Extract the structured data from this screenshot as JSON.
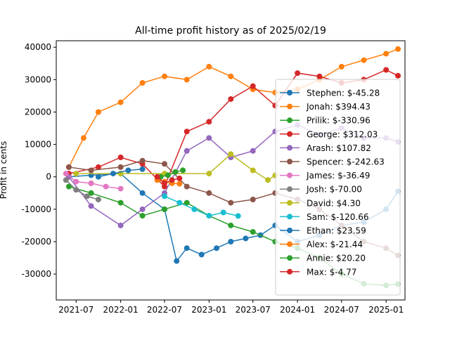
{
  "chart_data": {
    "type": "line",
    "title": "All-time profit history as of 2025/02/19",
    "xlabel": "",
    "ylabel": "Profit in cents",
    "xlim": [
      "2021-04-10",
      "2025-03-20"
    ],
    "ylim": [
      -38000,
      42000
    ],
    "x_ticks": [
      "2021-07",
      "2022-01",
      "2022-07",
      "2023-01",
      "2023-07",
      "2024-01",
      "2024-07",
      "2025-01"
    ],
    "y_ticks": [
      -30000,
      -20000,
      -10000,
      0,
      10000,
      20000,
      30000,
      40000
    ],
    "legend_position": "lower right",
    "series": [
      {
        "name": "Stephen: $-45.28",
        "color": "#1f77b4",
        "x": [
          "2021-06-01",
          "2021-09-01",
          "2022-01-01",
          "2022-04-01",
          "2022-07-01",
          "2022-08-20",
          "2022-10-01",
          "2022-12-01",
          "2023-02-01",
          "2023-04-01",
          "2023-06-01",
          "2023-08-01",
          "2023-10-01",
          "2024-01-01",
          "2024-04-01",
          "2024-07-01",
          "2024-10-01",
          "2025-01-01",
          "2025-02-19"
        ],
        "y": [
          0,
          500,
          1000,
          -5000,
          -10000,
          -26000,
          -22000,
          -24000,
          -22000,
          -20000,
          -19000,
          -18000,
          -15000,
          -20000,
          -18000,
          -15000,
          -14000,
          -10000,
          -4528
        ]
      },
      {
        "name": "Jonah: $394.43",
        "color": "#ff7f0e",
        "x": [
          "2021-06-01",
          "2021-08-01",
          "2021-10-01",
          "2022-01-01",
          "2022-04-01",
          "2022-07-01",
          "2022-10-01",
          "2023-01-01",
          "2023-04-01",
          "2023-07-01",
          "2023-10-01",
          "2024-01-01",
          "2024-04-01",
          "2024-07-01",
          "2024-10-01",
          "2025-01-01",
          "2025-02-19"
        ],
        "y": [
          3000,
          12000,
          20000,
          23000,
          29000,
          31000,
          30000,
          34000,
          31000,
          27000,
          26000,
          27000,
          30000,
          34000,
          36000,
          38000,
          39443
        ]
      },
      {
        "name": "Prilik: $-330.96",
        "color": "#2ca02c",
        "x": [
          "2021-06-01",
          "2021-09-01",
          "2022-01-01",
          "2022-04-01",
          "2022-07-01",
          "2022-10-01",
          "2023-01-01",
          "2023-04-01",
          "2023-07-01",
          "2023-10-01",
          "2024-01-01",
          "2024-04-01",
          "2024-07-01",
          "2024-10-01",
          "2025-01-01",
          "2025-02-19"
        ],
        "y": [
          -3000,
          -5000,
          -8000,
          -12000,
          -10000,
          -8000,
          -12000,
          -15000,
          -17000,
          -20000,
          -22000,
          -25000,
          -30000,
          -33000,
          -33500,
          -33096
        ]
      },
      {
        "name": "George: $312.03",
        "color": "#d62728",
        "x": [
          "2021-06-01",
          "2021-10-01",
          "2022-01-01",
          "2022-04-01",
          "2022-07-01",
          "2022-10-01",
          "2023-01-01",
          "2023-04-01",
          "2023-07-01",
          "2023-10-01",
          "2024-01-01",
          "2024-04-01",
          "2024-07-01",
          "2024-10-01",
          "2025-01-01",
          "2025-02-19"
        ],
        "y": [
          1000,
          3000,
          6000,
          4000,
          -3000,
          14000,
          17000,
          24000,
          28000,
          22000,
          32000,
          31000,
          29000,
          30000,
          33000,
          31203
        ]
      },
      {
        "name": "Arash: $107.82",
        "color": "#9467bd",
        "x": [
          "2021-06-01",
          "2021-09-01",
          "2022-01-01",
          "2022-04-01",
          "2022-07-01",
          "2022-10-01",
          "2023-01-01",
          "2023-04-01",
          "2023-07-01",
          "2023-10-01",
          "2024-01-01",
          "2024-04-01",
          "2024-07-01",
          "2024-10-01",
          "2025-01-01",
          "2025-02-19"
        ],
        "y": [
          0,
          -9000,
          -15000,
          -10000,
          -5000,
          8000,
          12000,
          6000,
          8000,
          14000,
          16000,
          13000,
          15000,
          12000,
          12000,
          10782
        ]
      },
      {
        "name": "Spencer: $-242.63",
        "color": "#8c564b",
        "x": [
          "2021-06-01",
          "2021-09-01",
          "2022-01-01",
          "2022-04-01",
          "2022-07-01",
          "2022-10-01",
          "2023-01-01",
          "2023-04-01",
          "2023-07-01",
          "2023-10-01",
          "2024-01-01",
          "2024-04-01",
          "2024-07-01",
          "2024-10-01",
          "2025-01-01",
          "2025-02-19"
        ],
        "y": [
          3000,
          2000,
          3000,
          5000,
          4000,
          -3000,
          -5000,
          -8000,
          -7000,
          -5000,
          -7000,
          -10000,
          -15000,
          -20000,
          -22000,
          -24263
        ]
      },
      {
        "name": "James: $-36.49",
        "color": "#e377c2",
        "x": [
          "2021-05-20",
          "2021-07-01",
          "2021-09-01",
          "2021-11-01",
          "2022-01-01"
        ],
        "y": [
          1000,
          -1500,
          -2000,
          -3000,
          -3649
        ]
      },
      {
        "name": "Josh: $-70.00",
        "color": "#7f7f7f",
        "x": [
          "2021-05-20",
          "2021-07-01",
          "2021-08-15",
          "2021-10-01"
        ],
        "y": [
          -1000,
          -4000,
          -6000,
          -7000
        ]
      },
      {
        "name": "David: $4.30",
        "color": "#bcbd22",
        "x": [
          "2021-07-01",
          "2022-01-01",
          "2022-07-01",
          "2023-01-01",
          "2023-04-01",
          "2023-07-01",
          "2023-09-01",
          "2023-10-01"
        ],
        "y": [
          1000,
          1000,
          1000,
          1000,
          7000,
          2000,
          -1000,
          430
        ]
      },
      {
        "name": "Sam: $-120.66",
        "color": "#17becf",
        "x": [
          "2022-07-01",
          "2022-09-01",
          "2022-11-01",
          "2023-01-01",
          "2023-03-01",
          "2023-05-01"
        ],
        "y": [
          -6000,
          -8000,
          -10000,
          -12000,
          -11000,
          -12066
        ]
      },
      {
        "name": "Ethan: $23.59",
        "color": "#1f77b4",
        "x": [
          "2021-10-01",
          "2021-12-01",
          "2022-02-01",
          "2022-04-01"
        ],
        "y": [
          0,
          1000,
          2000,
          2359
        ]
      },
      {
        "name": "Alex: $-21.44",
        "color": "#ff7f0e",
        "x": [
          "2022-06-01",
          "2022-07-01",
          "2022-08-01",
          "2022-09-01"
        ],
        "y": [
          -1000,
          -1500,
          -2000,
          -2144
        ]
      },
      {
        "name": "Annie: $20.20",
        "color": "#2ca02c",
        "x": [
          "2022-06-15",
          "2022-07-15",
          "2022-08-15",
          "2022-09-15"
        ],
        "y": [
          0,
          500,
          1500,
          2020
        ]
      },
      {
        "name": "Max: $-4.77",
        "color": "#d62728",
        "x": [
          "2022-06-01",
          "2022-07-01",
          "2022-08-01",
          "2022-09-01"
        ],
        "y": [
          0,
          -2000,
          -1000,
          -477
        ]
      }
    ]
  }
}
